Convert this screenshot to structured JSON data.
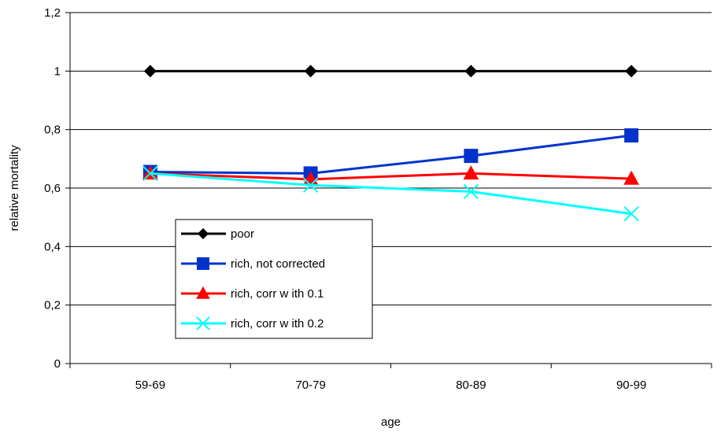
{
  "chart_data": {
    "type": "line",
    "categories": [
      "59-69",
      "70-79",
      "80-89",
      "90-99"
    ],
    "xlabel": "age",
    "ylabel": "relative mortality",
    "ylim": [
      0,
      1.2
    ],
    "yticks": [
      "0",
      "0,2",
      "0,4",
      "0,6",
      "0,8",
      "1",
      "1,2"
    ],
    "grid": "horizontal",
    "legend_position": "lower-left",
    "series": [
      {
        "name": "poor",
        "values": [
          1.0,
          1.0,
          1.0,
          1.0
        ],
        "color": "#000000",
        "marker": "diamond"
      },
      {
        "name": "rich, not corrected",
        "values": [
          0.655,
          0.65,
          0.71,
          0.78
        ],
        "color": "#0033cc",
        "marker": "square"
      },
      {
        "name": "rich, corr w ith 0.1",
        "values": [
          0.65,
          0.63,
          0.65,
          0.632
        ],
        "color": "#ff0000",
        "marker": "triangle"
      },
      {
        "name": "rich, corr w ith 0.2",
        "values": [
          0.65,
          0.61,
          0.588,
          0.512
        ],
        "color": "#00ffff",
        "marker": "x"
      }
    ]
  }
}
